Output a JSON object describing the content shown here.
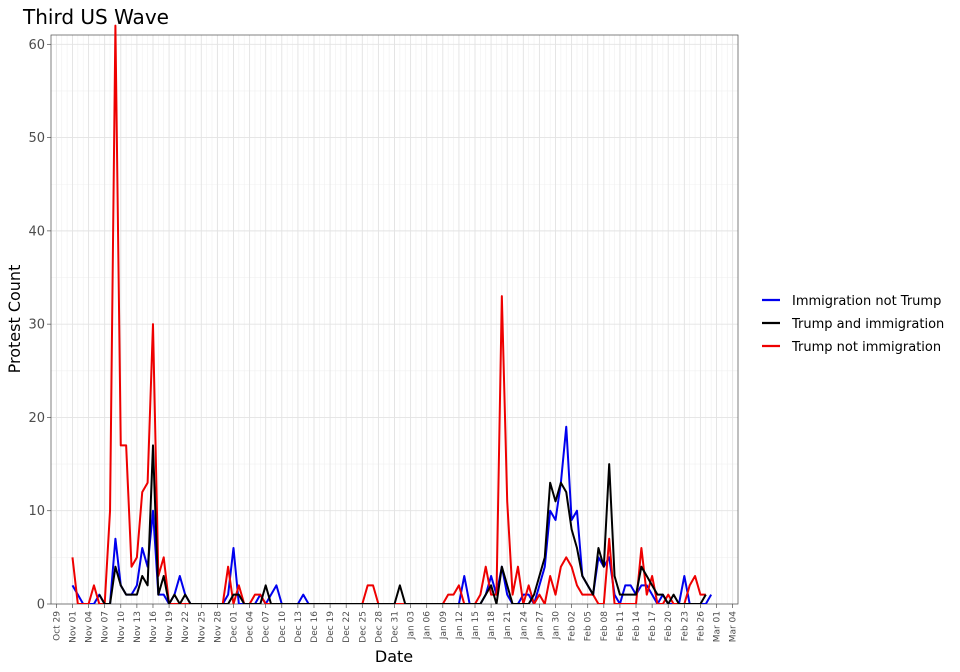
{
  "chart_data": {
    "type": "line",
    "title": "Third US Wave",
    "xlabel": "Date",
    "ylabel": "Protest Count",
    "ylim": [
      0,
      61
    ],
    "yticks": [
      0,
      10,
      20,
      30,
      40,
      50,
      60
    ],
    "xlim": [
      "2016-10-28",
      "2017-03-05"
    ],
    "xtick_labels": [
      "Oct 29",
      "Nov 01",
      "Nov 04",
      "Nov 07",
      "Nov 10",
      "Nov 13",
      "Nov 16",
      "Nov 19",
      "Nov 22",
      "Nov 25",
      "Nov 28",
      "Dec 01",
      "Dec 04",
      "Dec 07",
      "Dec 10",
      "Dec 13",
      "Dec 16",
      "Dec 19",
      "Dec 22",
      "Dec 25",
      "Dec 28",
      "Dec 31",
      "Jan 03",
      "Jan 06",
      "Jan 09",
      "Jan 12",
      "Jan 15",
      "Jan 18",
      "Jan 21",
      "Jan 24",
      "Jan 27",
      "Jan 30",
      "Feb 02",
      "Feb 05",
      "Feb 08",
      "Feb 11",
      "Feb 14",
      "Feb 17",
      "Feb 20",
      "Feb 23",
      "Feb 26",
      "Mar 01",
      "Mar 04"
    ],
    "xtick_dates": [
      "2016-10-29",
      "2016-11-01",
      "2016-11-04",
      "2016-11-07",
      "2016-11-10",
      "2016-11-13",
      "2016-11-16",
      "2016-11-19",
      "2016-11-22",
      "2016-11-25",
      "2016-11-28",
      "2016-12-01",
      "2016-12-04",
      "2016-12-07",
      "2016-12-10",
      "2016-12-13",
      "2016-12-16",
      "2016-12-19",
      "2016-12-22",
      "2016-12-25",
      "2016-12-28",
      "2016-12-31",
      "2017-01-03",
      "2017-01-06",
      "2017-01-09",
      "2017-01-12",
      "2017-01-15",
      "2017-01-18",
      "2017-01-21",
      "2017-01-24",
      "2017-01-27",
      "2017-01-30",
      "2017-02-02",
      "2017-02-05",
      "2017-02-08",
      "2017-02-11",
      "2017-02-14",
      "2017-02-17",
      "2017-02-20",
      "2017-02-23",
      "2017-02-26",
      "2017-03-01",
      "2017-03-04"
    ],
    "grid": true,
    "legend_position": "right",
    "series": [
      {
        "name": "Immigration not Trump",
        "color": "#0000ee",
        "points": [
          [
            "2016-11-01",
            2
          ],
          [
            "2016-11-02",
            1
          ],
          [
            "2016-11-03",
            0
          ],
          [
            "2016-11-05",
            0
          ],
          [
            "2016-11-06",
            1
          ],
          [
            "2016-11-07",
            0
          ],
          [
            "2016-11-08",
            0
          ],
          [
            "2016-11-09",
            7
          ],
          [
            "2016-11-10",
            2
          ],
          [
            "2016-11-11",
            1
          ],
          [
            "2016-11-12",
            1
          ],
          [
            "2016-11-13",
            2
          ],
          [
            "2016-11-14",
            6
          ],
          [
            "2016-11-15",
            4
          ],
          [
            "2016-11-16",
            10
          ],
          [
            "2016-11-17",
            1
          ],
          [
            "2016-11-18",
            1
          ],
          [
            "2016-11-19",
            0
          ],
          [
            "2016-11-20",
            1
          ],
          [
            "2016-11-21",
            3
          ],
          [
            "2016-11-22",
            1
          ],
          [
            "2016-11-23",
            0
          ],
          [
            "2016-11-24",
            0
          ],
          [
            "2016-11-26",
            0
          ],
          [
            "2016-11-29",
            0
          ],
          [
            "2016-11-30",
            1
          ],
          [
            "2016-12-01",
            6
          ],
          [
            "2016-12-02",
            0
          ],
          [
            "2016-12-03",
            0
          ],
          [
            "2016-12-05",
            0
          ],
          [
            "2016-12-06",
            1
          ],
          [
            "2016-12-07",
            0
          ],
          [
            "2016-12-08",
            1
          ],
          [
            "2016-12-09",
            2
          ],
          [
            "2016-12-10",
            0
          ],
          [
            "2016-12-11",
            0
          ],
          [
            "2016-12-13",
            0
          ],
          [
            "2016-12-14",
            1
          ],
          [
            "2016-12-15",
            0
          ],
          [
            "2016-12-17",
            0
          ],
          [
            "2017-01-10",
            0
          ],
          [
            "2017-01-11",
            0
          ],
          [
            "2017-01-12",
            0
          ],
          [
            "2017-01-13",
            3
          ],
          [
            "2017-01-14",
            0
          ],
          [
            "2017-01-16",
            0
          ],
          [
            "2017-01-17",
            1
          ],
          [
            "2017-01-18",
            3
          ],
          [
            "2017-01-19",
            1
          ],
          [
            "2017-01-20",
            4
          ],
          [
            "2017-01-21",
            1
          ],
          [
            "2017-01-22",
            0
          ],
          [
            "2017-01-23",
            0
          ],
          [
            "2017-01-24",
            1
          ],
          [
            "2017-01-25",
            1
          ],
          [
            "2017-01-26",
            0
          ],
          [
            "2017-01-27",
            2
          ],
          [
            "2017-01-28",
            4
          ],
          [
            "2017-01-29",
            10
          ],
          [
            "2017-01-30",
            9
          ],
          [
            "2017-01-31",
            13
          ],
          [
            "2017-02-01",
            19
          ],
          [
            "2017-02-02",
            9
          ],
          [
            "2017-02-03",
            10
          ],
          [
            "2017-02-04",
            3
          ],
          [
            "2017-02-05",
            2
          ],
          [
            "2017-02-06",
            1
          ],
          [
            "2017-02-07",
            5
          ],
          [
            "2017-02-08",
            4
          ],
          [
            "2017-02-09",
            5
          ],
          [
            "2017-02-10",
            1
          ],
          [
            "2017-02-11",
            0
          ],
          [
            "2017-02-12",
            2
          ],
          [
            "2017-02-13",
            2
          ],
          [
            "2017-02-14",
            1
          ],
          [
            "2017-02-15",
            2
          ],
          [
            "2017-02-16",
            2
          ],
          [
            "2017-02-17",
            1
          ],
          [
            "2017-02-18",
            0
          ],
          [
            "2017-02-19",
            1
          ],
          [
            "2017-02-20",
            0
          ],
          [
            "2017-02-21",
            0
          ],
          [
            "2017-02-22",
            0
          ],
          [
            "2017-02-23",
            3
          ],
          [
            "2017-02-24",
            0
          ],
          [
            "2017-02-25",
            0
          ],
          [
            "2017-02-26",
            0
          ],
          [
            "2017-02-27",
            0
          ],
          [
            "2017-02-28",
            1
          ]
        ]
      },
      {
        "name": "Trump and immigration",
        "color": "#000000",
        "points": [
          [
            "2016-11-06",
            1
          ],
          [
            "2016-11-07",
            0
          ],
          [
            "2016-11-08",
            0
          ],
          [
            "2016-11-09",
            4
          ],
          [
            "2016-11-10",
            2
          ],
          [
            "2016-11-11",
            1
          ],
          [
            "2016-11-12",
            1
          ],
          [
            "2016-11-13",
            1
          ],
          [
            "2016-11-14",
            3
          ],
          [
            "2016-11-15",
            2
          ],
          [
            "2016-11-16",
            17
          ],
          [
            "2016-11-17",
            1
          ],
          [
            "2016-11-18",
            3
          ],
          [
            "2016-11-19",
            0
          ],
          [
            "2016-11-20",
            1
          ],
          [
            "2016-11-21",
            0
          ],
          [
            "2016-11-22",
            1
          ],
          [
            "2016-11-23",
            0
          ],
          [
            "2016-11-24",
            0
          ],
          [
            "2016-11-26",
            0
          ],
          [
            "2016-11-29",
            0
          ],
          [
            "2016-11-30",
            0
          ],
          [
            "2016-12-01",
            1
          ],
          [
            "2016-12-02",
            1
          ],
          [
            "2016-12-03",
            0
          ],
          [
            "2016-12-05",
            0
          ],
          [
            "2016-12-06",
            0
          ],
          [
            "2016-12-07",
            2
          ],
          [
            "2016-12-08",
            0
          ],
          [
            "2016-12-09",
            0
          ],
          [
            "2016-12-31",
            0
          ],
          [
            "2017-01-01",
            2
          ],
          [
            "2017-01-02",
            0
          ],
          [
            "2017-01-03",
            0
          ],
          [
            "2017-01-16",
            0
          ],
          [
            "2017-01-17",
            1
          ],
          [
            "2017-01-18",
            2
          ],
          [
            "2017-01-19",
            0
          ],
          [
            "2017-01-20",
            4
          ],
          [
            "2017-01-21",
            2
          ],
          [
            "2017-01-22",
            0
          ],
          [
            "2017-01-23",
            0
          ],
          [
            "2017-01-24",
            0
          ],
          [
            "2017-01-25",
            0
          ],
          [
            "2017-01-26",
            1
          ],
          [
            "2017-01-27",
            3
          ],
          [
            "2017-01-28",
            5
          ],
          [
            "2017-01-29",
            13
          ],
          [
            "2017-01-30",
            11
          ],
          [
            "2017-01-31",
            13
          ],
          [
            "2017-02-01",
            12
          ],
          [
            "2017-02-02",
            8
          ],
          [
            "2017-02-03",
            6
          ],
          [
            "2017-02-04",
            3
          ],
          [
            "2017-02-05",
            2
          ],
          [
            "2017-02-06",
            1
          ],
          [
            "2017-02-07",
            6
          ],
          [
            "2017-02-08",
            4
          ],
          [
            "2017-02-09",
            15
          ],
          [
            "2017-02-10",
            3
          ],
          [
            "2017-02-11",
            1
          ],
          [
            "2017-02-12",
            1
          ],
          [
            "2017-02-13",
            1
          ],
          [
            "2017-02-14",
            1
          ],
          [
            "2017-02-15",
            4
          ],
          [
            "2017-02-16",
            3
          ],
          [
            "2017-02-17",
            2
          ],
          [
            "2017-02-18",
            1
          ],
          [
            "2017-02-19",
            1
          ],
          [
            "2017-02-20",
            0
          ],
          [
            "2017-02-21",
            1
          ],
          [
            "2017-02-22",
            0
          ],
          [
            "2017-02-26",
            0
          ],
          [
            "2017-02-27",
            1
          ]
        ]
      },
      {
        "name": "Trump not immigration",
        "color": "#ee0000",
        "points": [
          [
            "2016-11-01",
            5
          ],
          [
            "2016-11-02",
            0
          ],
          [
            "2016-11-03",
            0
          ],
          [
            "2016-11-04",
            0
          ],
          [
            "2016-11-05",
            2
          ],
          [
            "2016-11-06",
            0
          ],
          [
            "2016-11-07",
            0
          ],
          [
            "2016-11-08",
            10
          ],
          [
            "2016-11-09",
            62
          ],
          [
            "2016-11-10",
            17
          ],
          [
            "2016-11-11",
            17
          ],
          [
            "2016-11-12",
            4
          ],
          [
            "2016-11-13",
            5
          ],
          [
            "2016-11-14",
            12
          ],
          [
            "2016-11-15",
            13
          ],
          [
            "2016-11-16",
            30
          ],
          [
            "2016-11-17",
            3
          ],
          [
            "2016-11-18",
            5
          ],
          [
            "2016-11-19",
            0
          ],
          [
            "2016-11-20",
            0
          ],
          [
            "2016-11-21",
            0
          ],
          [
            "2016-11-29",
            0
          ],
          [
            "2016-11-30",
            4
          ],
          [
            "2016-12-01",
            0
          ],
          [
            "2016-12-02",
            2
          ],
          [
            "2016-12-03",
            0
          ],
          [
            "2016-12-04",
            0
          ],
          [
            "2016-12-05",
            1
          ],
          [
            "2016-12-06",
            1
          ],
          [
            "2016-12-07",
            0
          ],
          [
            "2016-12-08",
            0
          ],
          [
            "2016-12-25",
            0
          ],
          [
            "2016-12-26",
            2
          ],
          [
            "2016-12-27",
            2
          ],
          [
            "2016-12-28",
            0
          ],
          [
            "2016-12-29",
            0
          ],
          [
            "2017-01-09",
            0
          ],
          [
            "2017-01-10",
            1
          ],
          [
            "2017-01-11",
            1
          ],
          [
            "2017-01-12",
            2
          ],
          [
            "2017-01-13",
            0
          ],
          [
            "2017-01-14",
            0
          ],
          [
            "2017-01-15",
            0
          ],
          [
            "2017-01-16",
            1
          ],
          [
            "2017-01-17",
            4
          ],
          [
            "2017-01-18",
            1
          ],
          [
            "2017-01-19",
            1
          ],
          [
            "2017-01-20",
            33
          ],
          [
            "2017-01-21",
            11
          ],
          [
            "2017-01-22",
            1
          ],
          [
            "2017-01-23",
            4
          ],
          [
            "2017-01-24",
            0
          ],
          [
            "2017-01-25",
            2
          ],
          [
            "2017-01-26",
            0
          ],
          [
            "2017-01-27",
            1
          ],
          [
            "2017-01-28",
            0
          ],
          [
            "2017-01-29",
            3
          ],
          [
            "2017-01-30",
            1
          ],
          [
            "2017-01-31",
            4
          ],
          [
            "2017-02-01",
            5
          ],
          [
            "2017-02-02",
            4
          ],
          [
            "2017-02-03",
            2
          ],
          [
            "2017-02-04",
            1
          ],
          [
            "2017-02-05",
            1
          ],
          [
            "2017-02-06",
            1
          ],
          [
            "2017-02-07",
            0
          ],
          [
            "2017-02-08",
            0
          ],
          [
            "2017-02-09",
            7
          ],
          [
            "2017-02-10",
            0
          ],
          [
            "2017-02-14",
            0
          ],
          [
            "2017-02-15",
            6
          ],
          [
            "2017-02-16",
            1
          ],
          [
            "2017-02-17",
            3
          ],
          [
            "2017-02-18",
            0
          ],
          [
            "2017-02-19",
            0
          ],
          [
            "2017-02-20",
            1
          ],
          [
            "2017-02-21",
            0
          ],
          [
            "2017-02-22",
            0
          ],
          [
            "2017-02-23",
            0
          ],
          [
            "2017-02-24",
            2
          ],
          [
            "2017-02-25",
            3
          ],
          [
            "2017-02-26",
            1
          ],
          [
            "2017-02-27",
            1
          ]
        ]
      }
    ]
  }
}
